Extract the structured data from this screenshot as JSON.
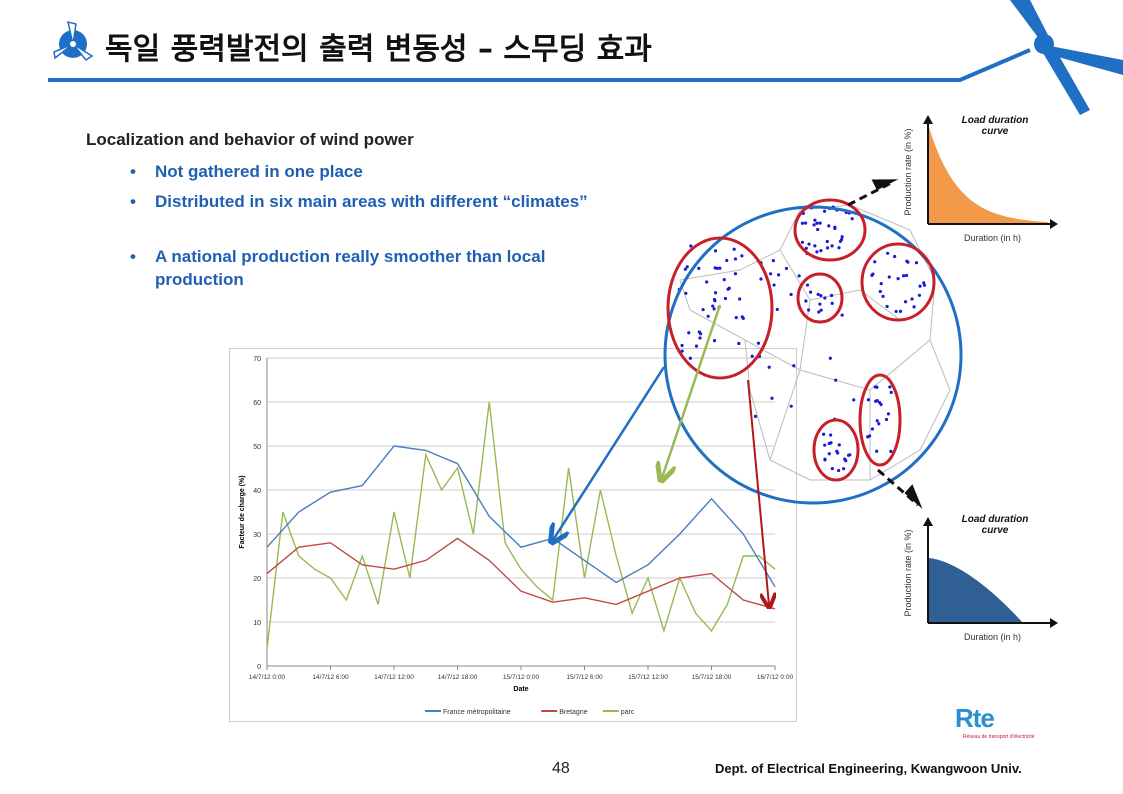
{
  "header": {
    "title": "독일 풍력발전의 출력 변동성 – 스무딩 효과",
    "accent_color": "#1f6fc4"
  },
  "content": {
    "subheading": "Localization and behavior of wind power",
    "bullets": [
      "Not gathered in one place",
      "Distributed in six main areas with different “climates”",
      "A national production really smoother than local production"
    ]
  },
  "ldc_top": {
    "title_line1": "Load duration",
    "title_line2": "curve",
    "ylabel": "Production rate (in %)",
    "xlabel": "Duration (in h)",
    "color": "#f39a4a"
  },
  "ldc_bottom": {
    "title_line1": "Load duration",
    "title_line2": "curve",
    "ylabel": "Production rate (in %)",
    "xlabel": "Duration (in h)",
    "color": "#2f5f95"
  },
  "logo": {
    "name": "Rte",
    "tagline": "Réseau de transport d'électricité"
  },
  "footer": {
    "page": "48",
    "dept": "Dept. of Electrical Engineering, Kwangwoon Univ."
  },
  "chart_data": {
    "type": "line",
    "xlabel": "Date",
    "ylabel": "Facteur de charge (%)",
    "ylim": [
      0,
      70
    ],
    "yticks": [
      0,
      10,
      20,
      30,
      40,
      50,
      60,
      70
    ],
    "xticks": [
      "14/7/12 0:00",
      "14/7/12 6:00",
      "14/7/12 12:00",
      "14/7/12 18:00",
      "15/7/12 0:00",
      "15/7/12 6:00",
      "15/7/12 12:00",
      "15/7/12 18:00",
      "16/7/12 0:00"
    ],
    "xrange_hours": [
      0,
      48
    ],
    "grid": true,
    "legend": "bottom",
    "series": [
      {
        "name": "France métropolitaine",
        "color": "#4a7ebb",
        "step_hours": 3,
        "values": [
          27,
          35,
          39.5,
          41,
          50,
          49,
          46,
          34,
          27,
          29,
          24,
          19,
          23,
          30,
          38,
          30,
          18
        ]
      },
      {
        "name": "Bretagne",
        "color": "#be4b48",
        "step_hours": 3,
        "values": [
          21,
          27,
          28,
          23,
          22,
          24,
          29,
          24,
          17,
          14.5,
          15.5,
          14,
          17,
          20,
          21,
          15,
          13
        ]
      },
      {
        "name": "parc",
        "color": "#98b954",
        "step_hours": 1.5,
        "values": [
          4,
          35,
          25,
          22,
          20,
          15,
          25,
          14,
          35,
          20,
          48,
          40,
          45,
          30,
          60,
          28,
          22,
          18,
          15,
          45,
          20,
          40,
          25,
          12,
          20,
          8,
          20,
          12,
          8,
          14,
          25,
          25,
          22
        ]
      }
    ]
  }
}
